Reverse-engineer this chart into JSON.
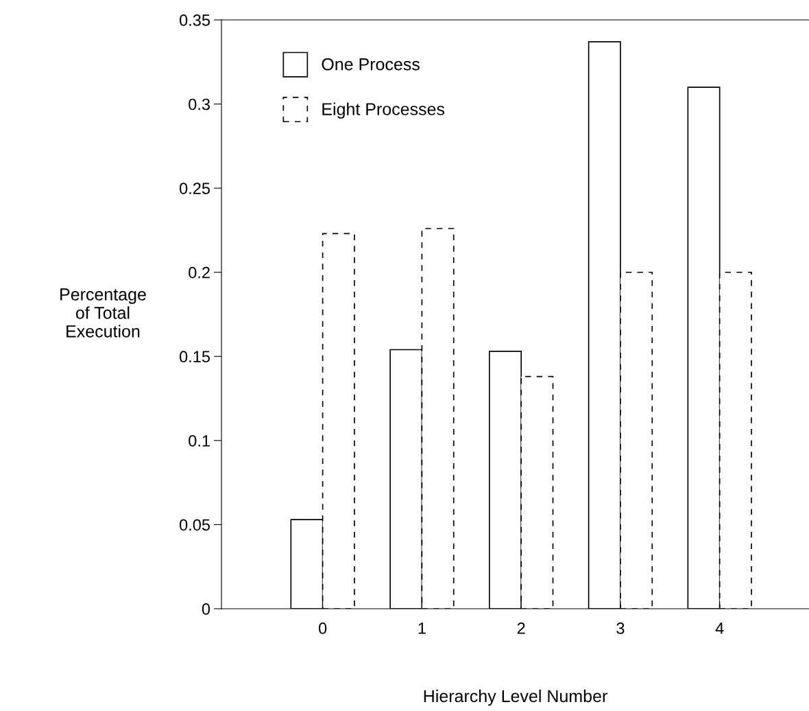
{
  "chart_data": {
    "type": "bar",
    "xlabel": "Hierarchy Level Number",
    "ylabel": "Percentage\nof Total\nExecution",
    "categories": [
      "0",
      "1",
      "2",
      "3",
      "4"
    ],
    "series": [
      {
        "name": "One Process",
        "color": "#000000",
        "line_style": "solid",
        "values": [
          0.053,
          0.154,
          0.153,
          0.337,
          0.31
        ]
      },
      {
        "name": "Eight Processes",
        "color": "#000000",
        "line_style": "dashed",
        "values": [
          0.223,
          0.226,
          0.138,
          0.2,
          0.2
        ]
      }
    ],
    "ylim": [
      0,
      0.35
    ],
    "yticks": [
      0,
      0.05,
      0.1,
      0.15,
      0.2,
      0.25,
      0.3,
      0.35
    ],
    "grid": false,
    "legend": "top left"
  }
}
